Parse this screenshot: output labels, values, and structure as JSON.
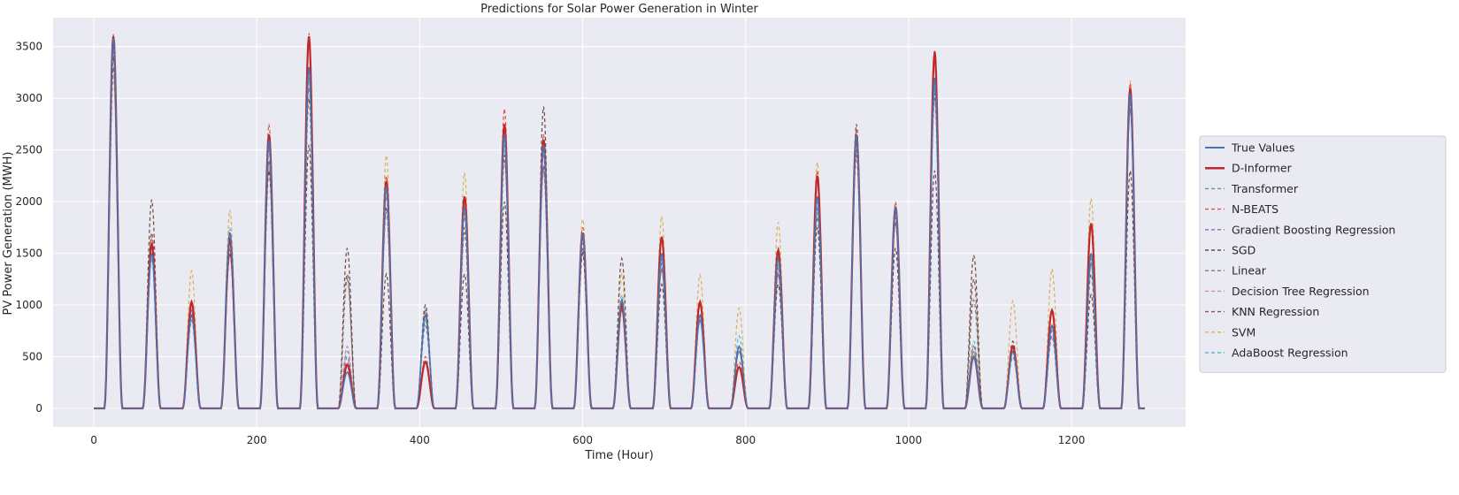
{
  "chart_data": {
    "type": "line",
    "title": "Predictions for Solar Power Generation in Winter",
    "xlabel": "Time (Hour)",
    "ylabel": "PV Power Generation (MWH)",
    "xlim": [
      -50,
      1340
    ],
    "ylim": [
      -180,
      3780
    ],
    "xticks": [
      0,
      200,
      400,
      600,
      800,
      1000,
      1200
    ],
    "yticks": [
      0,
      500,
      1000,
      1500,
      2000,
      2500,
      3000,
      3500
    ],
    "grid": true,
    "background": "#eaeaf2",
    "legend_position": "right",
    "x_range": [
      0,
      1290
    ],
    "day_period_hours": 48,
    "day_peak_offsets_hours": [
      24,
      71,
      120,
      167,
      215,
      264,
      311,
      359,
      407,
      455,
      504,
      552,
      600,
      648,
      697,
      744,
      792,
      840,
      888,
      936,
      984,
      1032,
      1080,
      1128,
      1176,
      1224,
      1272
    ],
    "true_values_daily_peaks": [
      3580,
      1500,
      900,
      1700,
      2600,
      3300,
      350,
      2150,
      900,
      1950,
      2650,
      2550,
      1700,
      1050,
      1500,
      900,
      600,
      1450,
      2050,
      2650,
      1950,
      3200,
      500,
      550,
      800,
      1500,
      3050
    ],
    "series": [
      {
        "name": "True Values",
        "color": "#4c72b0",
        "style": "solid",
        "peaks": [
          3580,
          1500,
          900,
          1700,
          2600,
          3300,
          350,
          2150,
          900,
          1950,
          2650,
          2550,
          1700,
          1050,
          1500,
          900,
          600,
          1450,
          2050,
          2650,
          1950,
          3200,
          500,
          550,
          800,
          1500,
          3050
        ]
      },
      {
        "name": "D-Informer",
        "color": "#c0282c",
        "style": "solid-thick",
        "peaks": [
          3600,
          1600,
          1030,
          1650,
          2650,
          3600,
          420,
          2200,
          450,
          2050,
          2750,
          2600,
          1700,
          1000,
          1660,
          1030,
          400,
          1530,
          2250,
          2650,
          1950,
          3450,
          500,
          600,
          950,
          1790,
          3100
        ]
      },
      {
        "name": "Transformer",
        "color": "#55a868",
        "style": "dashed",
        "peaks": [
          3500,
          1500,
          900,
          1650,
          2550,
          3250,
          400,
          2100,
          850,
          1900,
          2600,
          2500,
          1650,
          1000,
          1450,
          900,
          600,
          1400,
          2000,
          2600,
          1900,
          3150,
          550,
          550,
          800,
          1450,
          3000
        ]
      },
      {
        "name": "N-BEATS",
        "color": "#e0524a",
        "style": "dashed",
        "peaks": [
          3620,
          1650,
          1000,
          1700,
          2750,
          3630,
          450,
          2250,
          500,
          2050,
          2900,
          2650,
          1750,
          1050,
          1650,
          1000,
          450,
          1550,
          2300,
          2700,
          2000,
          3470,
          550,
          600,
          950,
          1800,
          3150
        ]
      },
      {
        "name": "Gradient Boosting Regression",
        "color": "#8172b2",
        "style": "dashed",
        "peaks": [
          3450,
          1450,
          950,
          1600,
          2500,
          3200,
          500,
          2050,
          800,
          1850,
          2550,
          2450,
          1600,
          950,
          1400,
          850,
          550,
          1350,
          1950,
          2550,
          1850,
          3100,
          600,
          550,
          750,
          1400,
          2950
        ]
      },
      {
        "name": "SGD",
        "color": "#6e4a3e",
        "style": "dashed",
        "peaks": [
          3400,
          2020,
          1000,
          1500,
          2300,
          2550,
          1550,
          1300,
          1000,
          1300,
          2000,
          2920,
          1500,
          1450,
          1200,
          1000,
          600,
          1200,
          1750,
          2750,
          1550,
          2300,
          1480,
          650,
          800,
          1100,
          2300
        ]
      },
      {
        "name": "Linear",
        "color": "#7a7a7a",
        "style": "dashed",
        "peaks": [
          3300,
          1550,
          850,
          1550,
          2350,
          3100,
          1250,
          1900,
          950,
          1700,
          2400,
          2300,
          1500,
          950,
          1350,
          850,
          550,
          1300,
          1900,
          2500,
          1800,
          3000,
          1050,
          500,
          700,
          1400,
          2900
        ]
      },
      {
        "name": "Decision Tree Regression",
        "color": "#cf8fc4",
        "style": "dashed",
        "peaks": [
          3550,
          1500,
          950,
          1700,
          2600,
          3300,
          600,
          2150,
          900,
          1950,
          2650,
          2550,
          1700,
          1050,
          1500,
          900,
          600,
          1450,
          2050,
          2650,
          1950,
          3200,
          550,
          550,
          800,
          1500,
          3050
        ]
      },
      {
        "name": "KNN Regression",
        "color": "#8c564b",
        "style": "dashed",
        "peaks": [
          3300,
          1700,
          950,
          1500,
          2400,
          3000,
          1300,
          1950,
          950,
          1750,
          2450,
          2350,
          1550,
          1000,
          1350,
          850,
          550,
          1300,
          1850,
          2450,
          1800,
          3050,
          1250,
          600,
          700,
          1300,
          2900
        ]
      },
      {
        "name": "SVM",
        "color": "#d9b35a",
        "style": "dashed",
        "peaks": [
          3200,
          1600,
          1330,
          1920,
          2500,
          3200,
          600,
          2450,
          900,
          2280,
          2500,
          2600,
          1830,
          1300,
          1860,
          1290,
          970,
          1800,
          2380,
          2550,
          1950,
          3100,
          600,
          1040,
          1350,
          2030,
          3170
        ]
      },
      {
        "name": "AdaBoost Regression",
        "color": "#64b5cd",
        "style": "dashed",
        "peaks": [
          3450,
          1450,
          950,
          1750,
          2550,
          3200,
          550,
          2100,
          950,
          1900,
          2600,
          2500,
          1650,
          1100,
          1450,
          900,
          700,
          1400,
          2000,
          2600,
          1900,
          3150,
          650,
          600,
          800,
          1500,
          3000
        ]
      }
    ]
  }
}
